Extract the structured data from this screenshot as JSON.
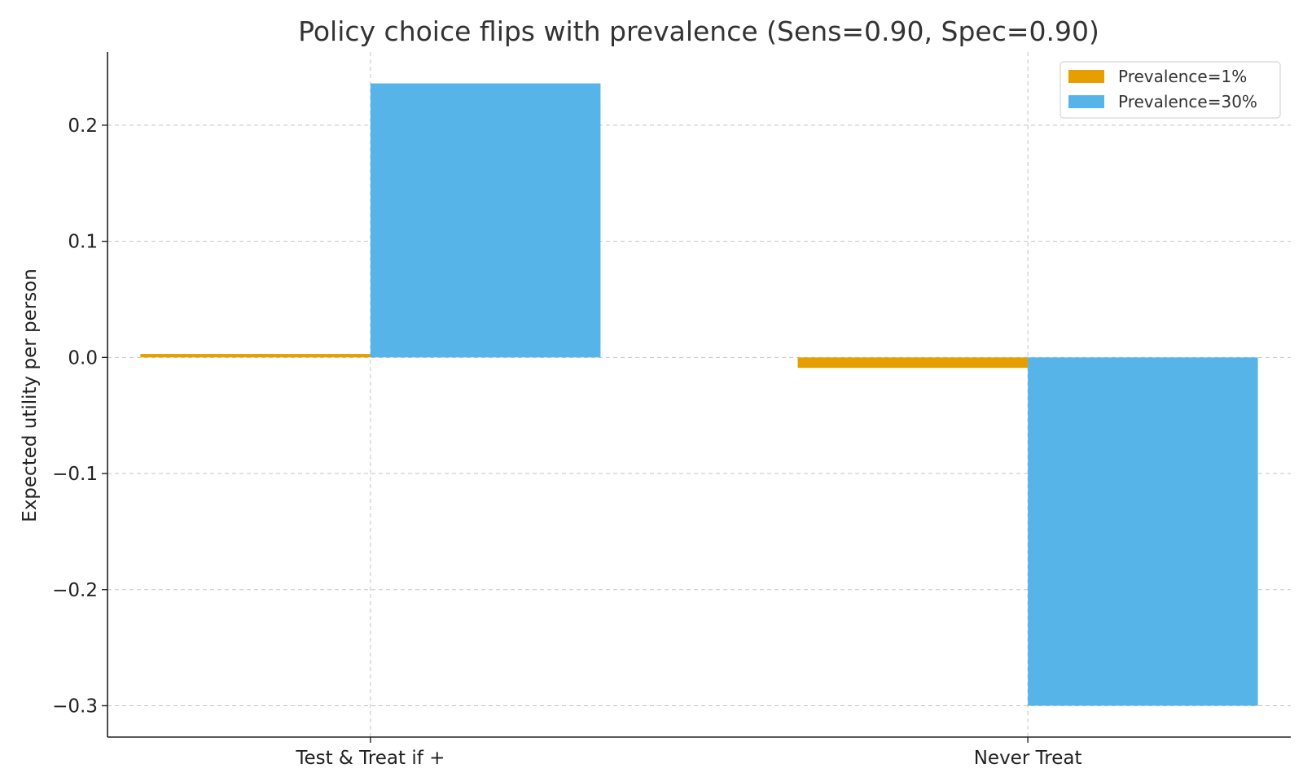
{
  "chart_data": {
    "type": "bar",
    "title": "Policy choice flips with prevalence (Sens=0.90, Spec=0.90)",
    "xlabel": "",
    "ylabel": "Expected utility per person",
    "categories": [
      "Test & Treat if +",
      "Never Treat"
    ],
    "series": [
      {
        "name": "Prevalence=1%",
        "color": "#E69F00",
        "values": [
          0.003,
          -0.009
        ]
      },
      {
        "name": "Prevalence=30%",
        "color": "#56B4E9",
        "values": [
          0.236,
          -0.3
        ]
      }
    ],
    "ylim": [
      -0.327,
      0.263
    ],
    "yticks": [
      -0.3,
      -0.2,
      -0.1,
      0.0,
      0.1,
      0.2
    ],
    "ytick_labels": [
      "−0.3",
      "−0.2",
      "−0.1",
      "0.0",
      "0.1",
      "0.2"
    ],
    "grid": true,
    "legend_position": "top-right"
  }
}
